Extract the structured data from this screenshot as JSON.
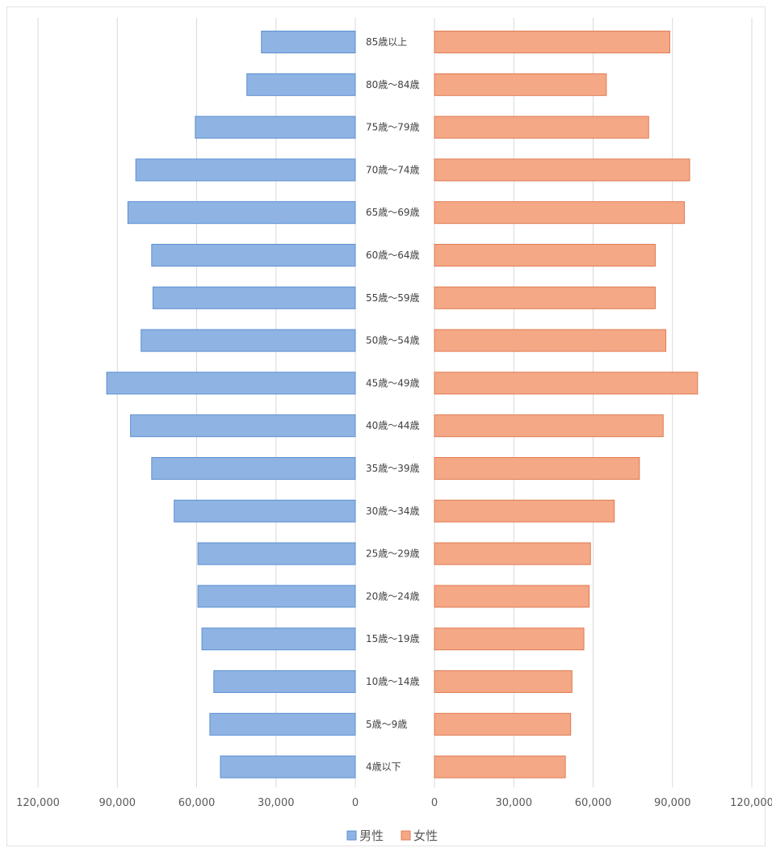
{
  "chart_data": {
    "type": "bar",
    "orientation": "horizontal",
    "layout": "population-pyramid",
    "categories": [
      "85歳以上",
      "80歳～84歳",
      "75歳～79歳",
      "70歳～74歳",
      "65歳～69歳",
      "60歳～64歳",
      "55歳～59歳",
      "50歳～54歳",
      "45歳～49歳",
      "40歳～44歳",
      "35歳～39歳",
      "30歳～34歳",
      "25歳～29歳",
      "20歳～24歳",
      "15歳～19歳",
      "10歳～14歳",
      "5歳～9歳",
      "4歳以下"
    ],
    "series": [
      {
        "name": "男性",
        "color": "#8fb4e3",
        "stroke": "#5b8ed0",
        "values": [
          35500,
          41000,
          60500,
          83000,
          86000,
          77000,
          76500,
          81000,
          94000,
          85000,
          77000,
          68500,
          59500,
          59500,
          58000,
          53500,
          55000,
          51000
        ]
      },
      {
        "name": "女性",
        "color": "#f4a886",
        "stroke": "#e07b53",
        "values": [
          89000,
          65000,
          81000,
          96500,
          94500,
          83500,
          83500,
          87500,
          99500,
          86500,
          77500,
          68000,
          59000,
          58500,
          56500,
          52000,
          51500,
          49500
        ]
      }
    ],
    "xlim": [
      0,
      120000
    ],
    "x_ticks_left": [
      "120,000",
      "90,000",
      "60,000",
      "30,000",
      "0"
    ],
    "x_ticks_right": [
      "0",
      "30,000",
      "60,000",
      "90,000",
      "120,000"
    ],
    "grid": true,
    "legend_position": "bottom"
  }
}
